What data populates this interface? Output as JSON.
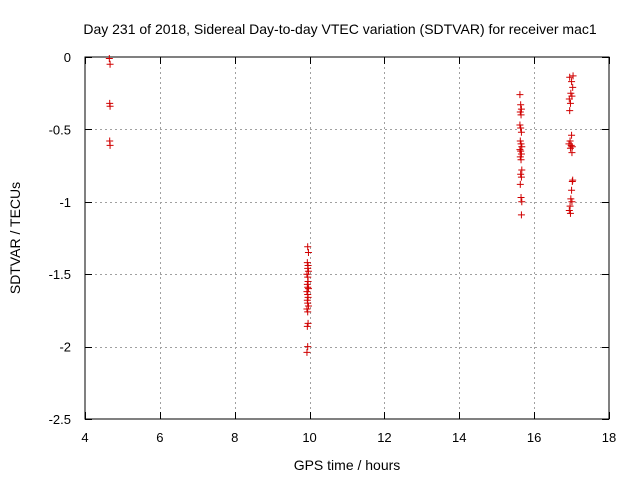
{
  "chart_data": {
    "type": "scatter",
    "title": "Day 231 of 2018, Sidereal Day-to-day VTEC variation (SDTVAR) for receiver mac1",
    "xlabel": "GPS time / hours",
    "ylabel": "SDTVAR / TECUs",
    "xlim": [
      4,
      18
    ],
    "ylim": [
      -2.5,
      0
    ],
    "xticks": [
      4,
      6,
      8,
      10,
      12,
      14,
      16,
      18
    ],
    "xtick_labels": [
      "4",
      "6",
      "8",
      "10",
      "12",
      "14",
      "16",
      "18"
    ],
    "yticks": [
      0,
      -0.5,
      -1,
      -1.5,
      -2,
      -2.5
    ],
    "ytick_labels": [
      "0",
      "-0.5",
      "-1",
      "-1.5",
      "-2",
      "-2.5"
    ],
    "grid": true,
    "marker": "+",
    "marker_color": "#d00000",
    "series": [
      {
        "name": "SDTVAR",
        "color": "#d00000",
        "points": [
          [
            4.65,
            -0.01
          ],
          [
            4.67,
            -0.05
          ],
          [
            4.66,
            -0.32
          ],
          [
            4.67,
            -0.34
          ],
          [
            4.66,
            -0.58
          ],
          [
            4.67,
            -0.61
          ],
          [
            9.95,
            -1.31
          ],
          [
            9.97,
            -1.35
          ],
          [
            9.94,
            -1.42
          ],
          [
            9.96,
            -1.44
          ],
          [
            9.95,
            -1.46
          ],
          [
            9.97,
            -1.48
          ],
          [
            9.93,
            -1.5
          ],
          [
            9.95,
            -1.52
          ],
          [
            9.96,
            -1.55
          ],
          [
            9.94,
            -1.57
          ],
          [
            9.95,
            -1.59
          ],
          [
            9.97,
            -1.6
          ],
          [
            9.93,
            -1.62
          ],
          [
            9.95,
            -1.64
          ],
          [
            9.96,
            -1.66
          ],
          [
            9.94,
            -1.68
          ],
          [
            9.95,
            -1.7
          ],
          [
            9.97,
            -1.72
          ],
          [
            9.93,
            -1.74
          ],
          [
            9.95,
            -1.76
          ],
          [
            9.96,
            -1.84
          ],
          [
            9.94,
            -1.86
          ],
          [
            9.95,
            -2.0
          ],
          [
            9.93,
            -2.04
          ],
          [
            15.62,
            -0.26
          ],
          [
            15.64,
            -0.33
          ],
          [
            15.66,
            -0.36
          ],
          [
            15.63,
            -0.38
          ],
          [
            15.65,
            -0.4
          ],
          [
            15.62,
            -0.47
          ],
          [
            15.64,
            -0.49
          ],
          [
            15.66,
            -0.52
          ],
          [
            15.63,
            -0.58
          ],
          [
            15.65,
            -0.6
          ],
          [
            15.67,
            -0.62
          ],
          [
            15.62,
            -0.64
          ],
          [
            15.64,
            -0.65
          ],
          [
            15.66,
            -0.67
          ],
          [
            15.63,
            -0.69
          ],
          [
            15.65,
            -0.71
          ],
          [
            15.67,
            -0.78
          ],
          [
            15.64,
            -0.81
          ],
          [
            15.66,
            -0.83
          ],
          [
            15.63,
            -0.88
          ],
          [
            15.65,
            -0.97
          ],
          [
            15.67,
            -1.0
          ],
          [
            15.66,
            -1.09
          ],
          [
            16.95,
            -0.14
          ],
          [
            17.04,
            -0.13
          ],
          [
            17.0,
            -0.17
          ],
          [
            17.03,
            -0.21
          ],
          [
            16.98,
            -0.25
          ],
          [
            17.01,
            -0.27
          ],
          [
            16.94,
            -0.29
          ],
          [
            16.97,
            -0.32
          ],
          [
            16.95,
            -0.37
          ],
          [
            17.0,
            -0.54
          ],
          [
            16.96,
            -0.58
          ],
          [
            16.93,
            -0.6
          ],
          [
            16.99,
            -0.61
          ],
          [
            17.02,
            -0.62
          ],
          [
            16.97,
            -0.63
          ],
          [
            17.01,
            -0.66
          ],
          [
            17.03,
            -0.85
          ],
          [
            17.02,
            -0.86
          ],
          [
            17.0,
            -0.92
          ],
          [
            16.98,
            -0.98
          ],
          [
            17.01,
            -1.0
          ],
          [
            16.96,
            -1.03
          ],
          [
            16.94,
            -1.06
          ],
          [
            16.97,
            -1.08
          ]
        ]
      }
    ]
  }
}
